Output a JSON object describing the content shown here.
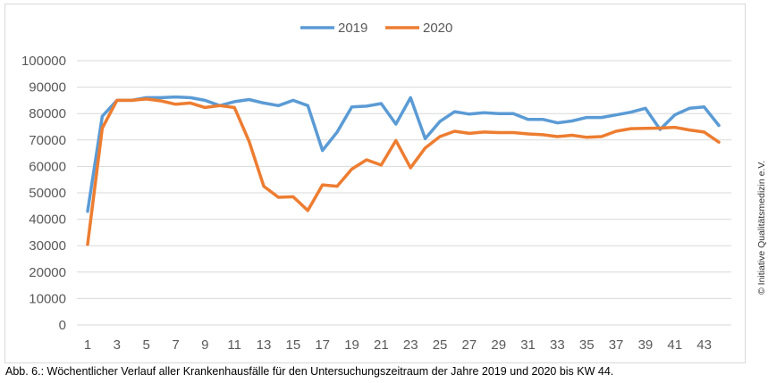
{
  "caption": "Abb. 6.: Wöchentlicher Verlauf aller Krankenhausfälle für den Untersuchungszeitraum der Jahre 2019 und 2020 bis KW 44.",
  "copyright": "© Initiative Qualitätsmedizin e.V.",
  "chart_data": {
    "type": "line",
    "title": "",
    "xlabel": "",
    "ylabel": "",
    "ylim": [
      0,
      100000
    ],
    "yticks": [
      0,
      10000,
      20000,
      30000,
      40000,
      50000,
      60000,
      70000,
      80000,
      90000,
      100000
    ],
    "x": [
      1,
      2,
      3,
      4,
      5,
      6,
      7,
      8,
      9,
      10,
      11,
      12,
      13,
      14,
      15,
      16,
      17,
      18,
      19,
      20,
      21,
      22,
      23,
      24,
      25,
      26,
      27,
      28,
      29,
      30,
      31,
      32,
      33,
      34,
      35,
      36,
      37,
      38,
      39,
      40,
      41,
      42,
      43,
      44
    ],
    "xtick_labels": [
      "1",
      "3",
      "5",
      "7",
      "9",
      "11",
      "13",
      "15",
      "17",
      "19",
      "21",
      "23",
      "25",
      "27",
      "29",
      "31",
      "33",
      "35",
      "37",
      "39",
      "41",
      "43"
    ],
    "grid": true,
    "legend_position": "top",
    "series": [
      {
        "name": "2019",
        "color": "#5b9bd5",
        "values": [
          43000,
          79000,
          85000,
          85000,
          86000,
          86000,
          86300,
          86000,
          85000,
          83000,
          84500,
          85300,
          84000,
          83000,
          85000,
          83000,
          66000,
          73000,
          82500,
          82800,
          83800,
          76000,
          86000,
          70500,
          77000,
          80700,
          79800,
          80300,
          80000,
          80000,
          77800,
          77800,
          76500,
          77200,
          78500,
          78500,
          79500,
          80500,
          82000,
          74000,
          79500,
          82000,
          82500,
          75500
        ]
      },
      {
        "name": "2020",
        "color": "#ed7d31",
        "values": [
          30500,
          74500,
          85000,
          85000,
          85500,
          84800,
          83500,
          84000,
          82300,
          83000,
          82300,
          69500,
          52500,
          48300,
          48500,
          43300,
          53000,
          52500,
          59000,
          62500,
          60500,
          69800,
          59500,
          67000,
          71300,
          73300,
          72500,
          73000,
          72800,
          72800,
          72300,
          72000,
          71300,
          71800,
          71000,
          71300,
          73300,
          74300,
          74400,
          74500,
          74800,
          73800,
          73000,
          69200
        ]
      }
    ]
  }
}
